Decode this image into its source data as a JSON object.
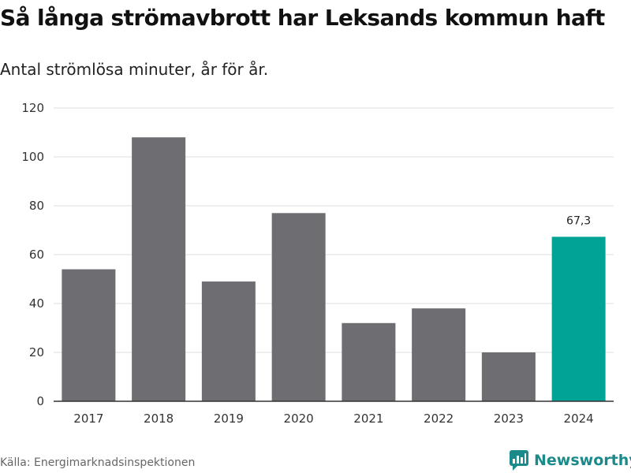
{
  "title": "Så långa strömavbrott har Leksands kommun haft",
  "subtitle": "Antal strömlösa minuter, år för år.",
  "source": "Källa: Energimarknadsinspektionen",
  "brand": {
    "name": "Newsworthy",
    "icon": "newsworthy-logo-icon",
    "color": "#1b8a8a"
  },
  "colors": {
    "bar": "#6e6d72",
    "highlight": "#00a396",
    "grid": "#dddddd",
    "axis": "#333333"
  },
  "chart_data": {
    "type": "bar",
    "title": "Så långa strömavbrott har Leksands kommun haft",
    "subtitle": "Antal strömlösa minuter, år för år.",
    "xlabel": "",
    "ylabel": "",
    "categories": [
      "2017",
      "2018",
      "2019",
      "2020",
      "2021",
      "2022",
      "2023",
      "2024"
    ],
    "values": [
      54,
      108,
      49,
      77,
      32,
      38,
      20,
      67.3
    ],
    "highlight_index": 7,
    "data_labels": [
      {
        "index": 7,
        "text": "67,3"
      }
    ],
    "ylim": [
      0,
      120
    ],
    "yticks": [
      0,
      20,
      40,
      60,
      80,
      100,
      120
    ],
    "grid": true
  }
}
